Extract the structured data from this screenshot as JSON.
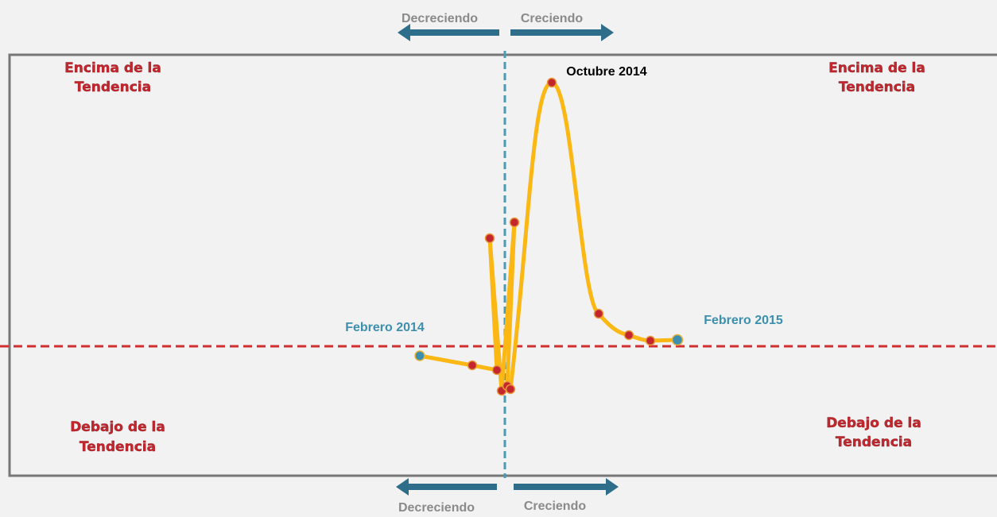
{
  "arrows": {
    "top_left": "Decreciendo",
    "top_right": "Creciendo",
    "bottom_left": "Decreciendo",
    "bottom_right": "Creciendo"
  },
  "quadrants": {
    "top_left": [
      "Encima de la",
      "Tendencia"
    ],
    "top_right": [
      "Encima de la",
      "Tendencia"
    ],
    "bottom_left": [
      "Debajo de la",
      "Tendencia"
    ],
    "bottom_right": [
      "Debajo de la",
      "Tendencia"
    ]
  },
  "points": {
    "start": "Febrero 2014",
    "peak": "Octubre 2014",
    "end": "Febrero 2015"
  }
}
